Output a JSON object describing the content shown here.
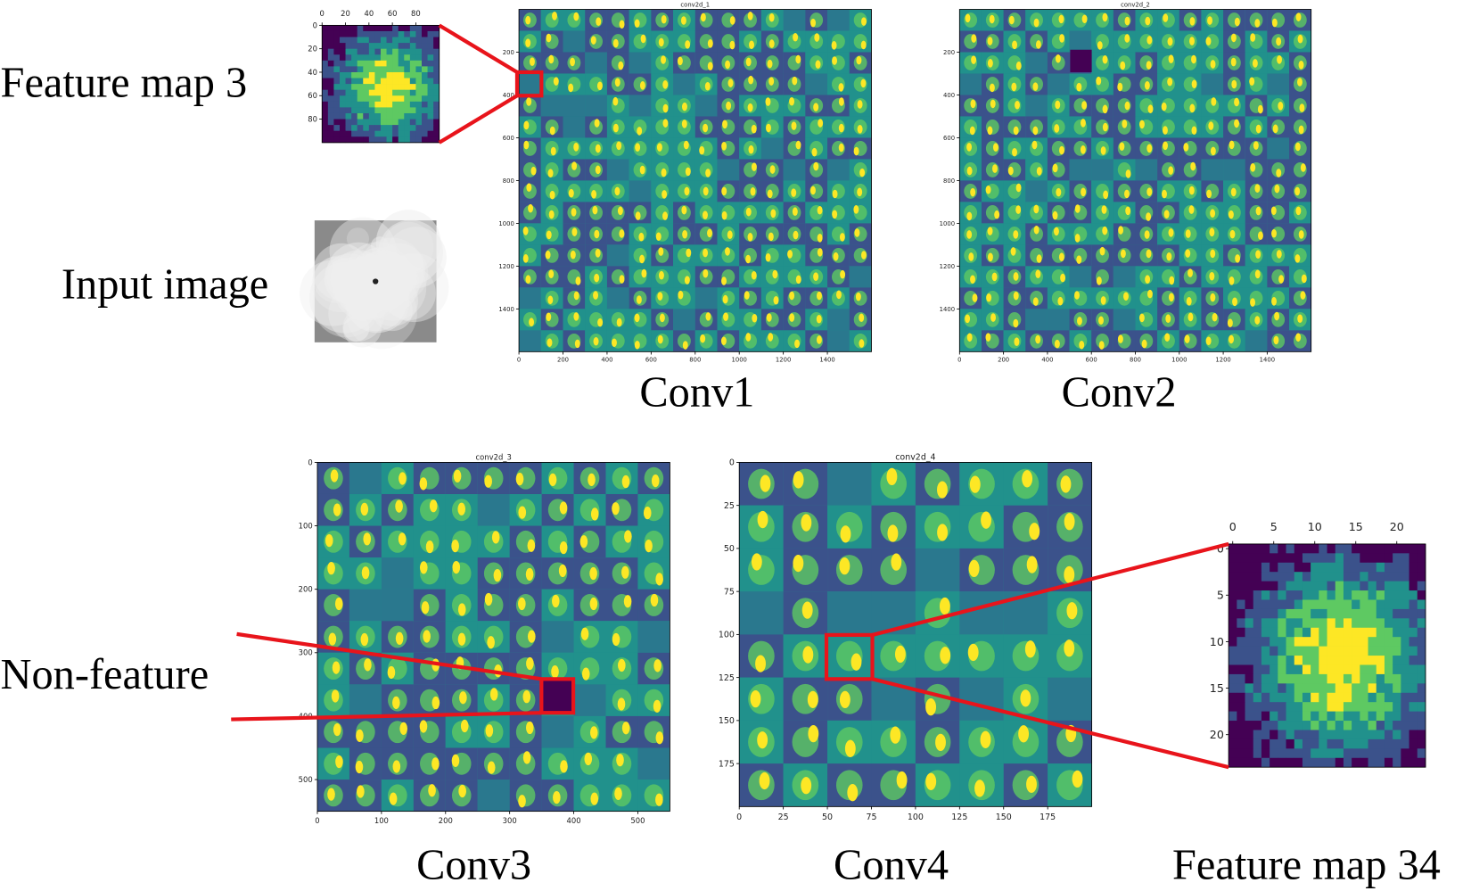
{
  "labels": {
    "feature_map_3": "Feature map 3",
    "input_image": "Input image",
    "non_feature": "Non-feature",
    "feature_map_34": "Feature map 34"
  },
  "panels": [
    {
      "id": "fm3",
      "xlim": [
        0,
        100
      ],
      "ylim": [
        0,
        100
      ],
      "xticks": [
        0,
        20,
        40,
        60,
        80
      ],
      "yticks": [
        0,
        20,
        40,
        60,
        80
      ]
    },
    {
      "id": "conv1",
      "title": "conv2d_1",
      "caption": "Conv1",
      "xlim": [
        0,
        1600
      ],
      "ylim": [
        0,
        1600
      ],
      "xticks": [
        0,
        200,
        400,
        600,
        800,
        1000,
        1200,
        1400
      ],
      "yticks": [
        200,
        400,
        600,
        800,
        1000,
        1200,
        1400
      ]
    },
    {
      "id": "conv2",
      "title": "conv2d_2",
      "caption": "Conv2",
      "xlim": [
        0,
        1600
      ],
      "ylim": [
        0,
        1600
      ],
      "xticks": [
        0,
        200,
        400,
        600,
        800,
        1000,
        1200,
        1400
      ],
      "yticks": [
        200,
        400,
        600,
        800,
        1000,
        1200,
        1400
      ]
    },
    {
      "id": "conv3",
      "title": "conv2d_3",
      "caption": "Conv3",
      "xlim": [
        0,
        550
      ],
      "ylim": [
        0,
        550
      ],
      "xticks": [
        0,
        100,
        200,
        300,
        400,
        500
      ],
      "yticks": [
        0,
        100,
        200,
        300,
        400,
        500
      ]
    },
    {
      "id": "conv4",
      "title": "conv2d_4",
      "caption": "Conv4",
      "xlim": [
        0,
        200
      ],
      "ylim": [
        0,
        200
      ],
      "xticks": [
        0,
        25,
        50,
        75,
        100,
        125,
        150,
        175
      ],
      "yticks": [
        0,
        25,
        50,
        75,
        100,
        125,
        150,
        175
      ]
    },
    {
      "id": "fm34",
      "xlim": [
        -0.5,
        23.5
      ],
      "ylim": [
        -0.5,
        23.5
      ],
      "xticks": [
        0,
        5,
        10,
        15,
        20
      ],
      "yticks": [
        0,
        5,
        10,
        15,
        20
      ]
    }
  ]
}
